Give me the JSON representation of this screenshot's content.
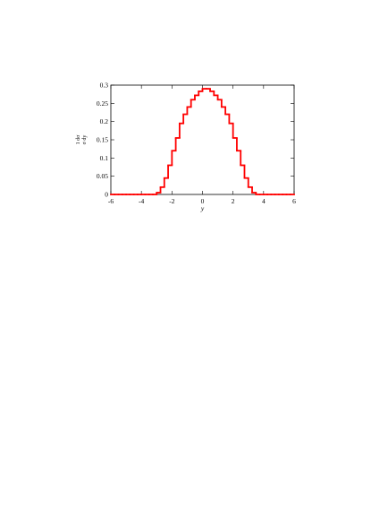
{
  "chart_data": {
    "type": "histogram",
    "xlabel": "y",
    "ylabel": [
      "1 dσ",
      "σ dy"
    ],
    "color": "#ff0000",
    "bins": [
      -6,
      -5.75,
      -5.5,
      -5.25,
      -5,
      -4.75,
      -4.5,
      -4.25,
      -4,
      -3.75,
      -3.5,
      -3.25,
      -3,
      -2.75,
      -2.5,
      -2.25,
      -2,
      -1.75,
      -1.5,
      -1.25,
      -1,
      -0.75,
      -0.5,
      -0.25,
      0,
      0.25,
      0.5,
      0.75,
      1,
      1.25,
      1.5,
      1.75,
      2,
      2.25,
      2.5,
      2.75,
      3,
      3.25,
      3.5,
      3.75,
      4,
      4.25,
      4.5,
      4.75,
      5,
      5.25,
      5.5,
      5.75,
      6
    ],
    "counts": [
      0,
      0,
      0,
      0,
      0,
      0,
      0,
      0,
      0,
      0,
      0,
      0,
      0.005,
      0.02,
      0.045,
      0.08,
      0.12,
      0.155,
      0.195,
      0.22,
      0.24,
      0.26,
      0.272,
      0.283,
      0.29,
      0.29,
      0.283,
      0.272,
      0.26,
      0.24,
      0.22,
      0.195,
      0.155,
      0.12,
      0.08,
      0.045,
      0.02,
      0.005,
      0,
      0,
      0,
      0,
      0,
      0,
      0,
      0,
      0,
      0
    ],
    "xlim": [
      -6,
      6
    ],
    "ylim": [
      0,
      0.3
    ],
    "xticks": [
      -6,
      -4,
      -2,
      0,
      2,
      4,
      6
    ],
    "yticks": [
      0,
      0.05,
      0.1,
      0.15,
      0.2,
      0.25,
      0.3
    ]
  }
}
